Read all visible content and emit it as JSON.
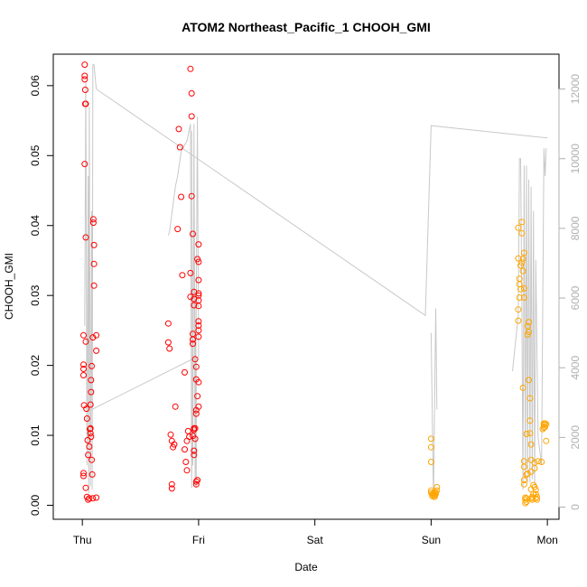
{
  "chart_data": {
    "type": "scatter",
    "title": "ATOM2 Northeast_Pacific_1 CHOOH_GMI",
    "xlabel": "Date",
    "ylabel": "CHOOH_GMI",
    "x_unit": "days",
    "x_categories": [
      "Thu",
      "Fri",
      "Sat",
      "Sun",
      "Mon"
    ],
    "x_tick_positions": [
      0,
      1,
      2,
      3,
      4
    ],
    "xlim": [
      -0.25,
      4.1
    ],
    "ylim": [
      -0.002,
      0.0645
    ],
    "y_ticks": [
      0.0,
      0.01,
      0.02,
      0.03,
      0.04,
      0.05,
      0.06
    ],
    "y_tick_labels": [
      "0.00",
      "0.01",
      "0.02",
      "0.03",
      "0.04",
      "0.05",
      "0.06"
    ],
    "y2lim": [
      -350,
      13000
    ],
    "y2_ticks": [
      0,
      2000,
      4000,
      6000,
      8000,
      10000,
      12000
    ],
    "y2_tick_labels": [
      "0",
      "2000",
      "4000",
      "6000",
      "8000",
      "10000",
      "12000"
    ],
    "colors": {
      "series_red": "#ff0000",
      "series_orange": "#ffa500",
      "altitude_line": "#c8c8c8"
    },
    "series": [
      {
        "color": "#ff0000",
        "points": [
          [
            0.01,
            0.0195
          ],
          [
            0.01,
            0.0201
          ],
          [
            0.01,
            0.0186
          ],
          [
            0.01,
            0.0243
          ],
          [
            0.01,
            0.0042
          ],
          [
            0.01,
            0.0046
          ],
          [
            0.015,
            0.0143
          ],
          [
            0.02,
            0.063
          ],
          [
            0.02,
            0.0614
          ],
          [
            0.02,
            0.0609
          ],
          [
            0.025,
            0.0594
          ],
          [
            0.025,
            0.0574
          ],
          [
            0.03,
            0.0574
          ],
          [
            0.02,
            0.0488
          ],
          [
            0.03,
            0.0383
          ],
          [
            0.03,
            0.0234
          ],
          [
            0.035,
            0.0138
          ],
          [
            0.04,
            0.0124
          ],
          [
            0.045,
            0.0093
          ],
          [
            0.05,
            0.0072
          ],
          [
            0.03,
            0.0025
          ],
          [
            0.04,
            0.0012
          ],
          [
            0.05,
            0.0008
          ],
          [
            0.06,
            0.001
          ],
          [
            0.06,
            0.0084
          ],
          [
            0.065,
            0.0109
          ],
          [
            0.07,
            0.0103
          ],
          [
            0.07,
            0.011
          ],
          [
            0.075,
            0.0098
          ],
          [
            0.07,
            0.0144
          ],
          [
            0.075,
            0.0162
          ],
          [
            0.075,
            0.0179
          ],
          [
            0.08,
            0.0199
          ],
          [
            0.08,
            0.0065
          ],
          [
            0.085,
            0.0044
          ],
          [
            0.09,
            0.024
          ],
          [
            0.095,
            0.0409
          ],
          [
            0.095,
            0.0404
          ],
          [
            0.1,
            0.0372
          ],
          [
            0.1,
            0.0345
          ],
          [
            0.1,
            0.0314
          ],
          [
            0.12,
            0.0243
          ],
          [
            0.12,
            0.0221
          ],
          [
            0.12,
            0.0011
          ],
          [
            0.09,
            0.001
          ],
          [
            0.74,
            0.026
          ],
          [
            0.74,
            0.0233
          ],
          [
            0.75,
            0.0224
          ],
          [
            0.76,
            0.0101
          ],
          [
            0.77,
            0.0092
          ],
          [
            0.77,
            0.003
          ],
          [
            0.77,
            0.0024
          ],
          [
            0.78,
            0.0083
          ],
          [
            0.79,
            0.0087
          ],
          [
            0.8,
            0.0141
          ],
          [
            0.82,
            0.0395
          ],
          [
            0.83,
            0.0538
          ],
          [
            0.84,
            0.0512
          ],
          [
            0.85,
            0.0441
          ],
          [
            0.86,
            0.0329
          ],
          [
            0.88,
            0.019
          ],
          [
            0.88,
            0.008
          ],
          [
            0.89,
            0.0062
          ],
          [
            0.9,
            0.005
          ],
          [
            0.9,
            0.0092
          ],
          [
            0.91,
            0.0106
          ],
          [
            0.92,
            0.0098
          ],
          [
            0.93,
            0.0624
          ],
          [
            0.93,
            0.0332
          ],
          [
            0.93,
            0.0298
          ],
          [
            0.94,
            0.0589
          ],
          [
            0.94,
            0.0556
          ],
          [
            0.94,
            0.0442
          ],
          [
            0.95,
            0.0388
          ],
          [
            0.95,
            0.0245
          ],
          [
            0.95,
            0.0237
          ],
          [
            0.95,
            0.0231
          ],
          [
            0.96,
            0.0295
          ],
          [
            0.96,
            0.0305
          ],
          [
            0.96,
            0.0286
          ],
          [
            0.96,
            0.0078
          ],
          [
            0.96,
            0.0072
          ],
          [
            0.96,
            0.011
          ],
          [
            0.96,
            0.0108
          ],
          [
            0.97,
            0.0095
          ],
          [
            0.97,
            0.011
          ],
          [
            0.97,
            0.0209
          ],
          [
            0.98,
            0.0198
          ],
          [
            0.98,
            0.018
          ],
          [
            0.98,
            0.0136
          ],
          [
            0.98,
            0.0131
          ],
          [
            0.98,
            0.0034
          ],
          [
            0.98,
            0.003
          ],
          [
            0.99,
            0.0036
          ],
          [
            0.99,
            0.0156
          ],
          [
            0.99,
            0.0352
          ],
          [
            1.0,
            0.0373
          ],
          [
            1.0,
            0.0348
          ],
          [
            1.0,
            0.0322
          ],
          [
            1.0,
            0.0303
          ],
          [
            1.0,
            0.03
          ],
          [
            1.0,
            0.0293
          ],
          [
            1.0,
            0.0285
          ],
          [
            1.0,
            0.0263
          ],
          [
            1.0,
            0.0257
          ],
          [
            1.0,
            0.025
          ],
          [
            1.0,
            0.0241
          ],
          [
            1.0,
            0.0176
          ],
          [
            1.0,
            0.0141
          ],
          [
            0.95,
            0.0099
          ]
        ]
      },
      {
        "color": "#ffa500",
        "points": [
          [
            3.0,
            0.0095
          ],
          [
            3.0,
            0.0083
          ],
          [
            3.0,
            0.0062
          ],
          [
            3.0,
            0.0021
          ],
          [
            3.0,
            0.0018
          ],
          [
            3.01,
            0.0016
          ],
          [
            3.01,
            0.0013
          ],
          [
            3.02,
            0.0014
          ],
          [
            3.02,
            0.0017
          ],
          [
            3.03,
            0.0019
          ],
          [
            3.03,
            0.0014
          ],
          [
            3.04,
            0.0016
          ],
          [
            3.04,
            0.0018
          ],
          [
            3.05,
            0.0021
          ],
          [
            3.05,
            0.0026
          ],
          [
            3.03,
            0.0012
          ],
          [
            3.75,
            0.0397
          ],
          [
            3.75,
            0.0353
          ],
          [
            3.76,
            0.0324
          ],
          [
            3.76,
            0.0316
          ],
          [
            3.75,
            0.028
          ],
          [
            3.75,
            0.0264
          ],
          [
            3.76,
            0.0297
          ],
          [
            3.77,
            0.0309
          ],
          [
            3.77,
            0.0343
          ],
          [
            3.78,
            0.0405
          ],
          [
            3.78,
            0.0389
          ],
          [
            3.78,
            0.0347
          ],
          [
            3.79,
            0.0352
          ],
          [
            3.79,
            0.0335
          ],
          [
            3.8,
            0.0361
          ],
          [
            3.8,
            0.031
          ],
          [
            3.8,
            0.0297
          ],
          [
            3.79,
            0.0168
          ],
          [
            3.8,
            0.0063
          ],
          [
            3.8,
            0.0055
          ],
          [
            3.8,
            0.0036
          ],
          [
            3.8,
            0.003
          ],
          [
            3.81,
            0.0011
          ],
          [
            3.81,
            0.0008
          ],
          [
            3.81,
            0.0003
          ],
          [
            3.82,
            0.0005
          ],
          [
            3.82,
            0.001
          ],
          [
            3.82,
            0.0044
          ],
          [
            3.82,
            0.0102
          ],
          [
            3.83,
            0.0045
          ],
          [
            3.83,
            0.0244
          ],
          [
            3.83,
            0.0256
          ],
          [
            3.84,
            0.0262
          ],
          [
            3.84,
            0.0248
          ],
          [
            3.84,
            0.0179
          ],
          [
            3.85,
            0.0153
          ],
          [
            3.85,
            0.0121
          ],
          [
            3.85,
            0.0103
          ],
          [
            3.86,
            0.0087
          ],
          [
            3.86,
            0.0065
          ],
          [
            3.86,
            0.0048
          ],
          [
            3.86,
            0.0023
          ],
          [
            3.87,
            0.001
          ],
          [
            3.87,
            0.0008
          ],
          [
            3.87,
            0.0012
          ],
          [
            3.88,
            0.0016
          ],
          [
            3.88,
            0.0029
          ],
          [
            3.89,
            0.0053
          ],
          [
            3.89,
            0.0061
          ],
          [
            3.89,
            0.0026
          ],
          [
            3.9,
            0.0022
          ],
          [
            3.9,
            0.0016
          ],
          [
            3.9,
            0.001
          ],
          [
            3.91,
            0.0012
          ],
          [
            3.91,
            0.0008
          ],
          [
            3.92,
            0.0063
          ],
          [
            3.97,
            0.0117
          ],
          [
            3.97,
            0.0115
          ],
          [
            3.97,
            0.0111
          ],
          [
            3.98,
            0.0117
          ],
          [
            3.98,
            0.0112
          ],
          [
            3.99,
            0.0116
          ],
          [
            3.99,
            0.0092
          ],
          [
            3.95,
            0.0062
          ],
          [
            3.96,
            0.0109
          ]
        ]
      }
    ],
    "altitude_line": {
      "color": "#c8c8c8",
      "segments": [
        [
          [
            0.02,
            5200
          ],
          [
            0.03,
            12200
          ],
          [
            0.04,
            1200
          ],
          [
            0.05,
            9500
          ],
          [
            0.055,
            400
          ],
          [
            0.06,
            11500
          ],
          [
            0.07,
            600
          ],
          [
            0.08,
            8500
          ],
          [
            0.085,
            500
          ],
          [
            0.09,
            12700
          ],
          [
            0.1,
            12700
          ],
          [
            0.12,
            12000
          ]
        ],
        [
          [
            0.12,
            12000
          ],
          [
            2.95,
            5500
          ],
          [
            3.0,
            10950
          ],
          [
            3.99,
            10600
          ],
          [
            4.0,
            10600
          ]
        ],
        [
          [
            0.08,
            2800
          ],
          [
            0.98,
            4300
          ],
          [
            0.98,
            550
          ],
          [
            0.96,
            9000
          ],
          [
            0.94,
            550
          ],
          [
            0.93,
            11000
          ],
          [
            0.9,
            10500
          ],
          [
            0.88,
            10400
          ],
          [
            0.85,
            10200
          ],
          [
            0.82,
            9500
          ],
          [
            0.8,
            9200
          ],
          [
            0.75,
            7900
          ],
          [
            0.74,
            7800
          ]
        ],
        [
          [
            1.0,
            4300
          ],
          [
            0.99,
            11200
          ],
          [
            0.97,
            600
          ],
          [
            0.96,
            11000
          ],
          [
            0.95,
            1200
          ],
          [
            0.94,
            10800
          ]
        ],
        [
          [
            3.0,
            5000
          ],
          [
            3.02,
            200
          ],
          [
            3.04,
            5700
          ],
          [
            3.05,
            2800
          ]
        ],
        [
          [
            3.7,
            3900
          ],
          [
            3.75,
            5500
          ],
          [
            3.76,
            10000
          ],
          [
            3.77,
            10000
          ],
          [
            3.78,
            6000
          ],
          [
            3.79,
            500
          ],
          [
            3.8,
            9800
          ],
          [
            3.81,
            800
          ],
          [
            3.82,
            9800
          ],
          [
            3.83,
            700
          ],
          [
            3.84,
            9400
          ],
          [
            3.85,
            700
          ],
          [
            3.86,
            9200
          ],
          [
            3.87,
            800
          ],
          [
            3.88,
            8500
          ],
          [
            3.89,
            600
          ],
          [
            3.9,
            7100
          ],
          [
            3.92,
            2000
          ],
          [
            3.95,
            1200
          ],
          [
            3.97,
            10300
          ],
          [
            3.98,
            9500
          ],
          [
            3.99,
            10300
          ]
        ]
      ]
    }
  }
}
